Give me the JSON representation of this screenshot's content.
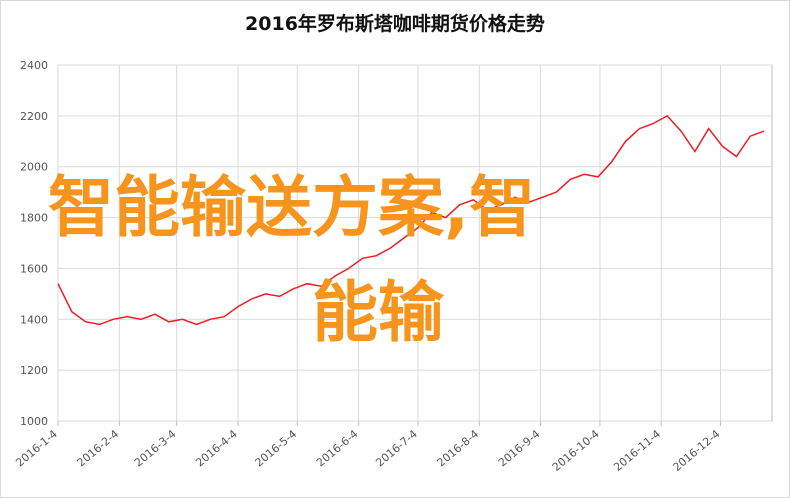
{
  "chart_data": {
    "type": "line",
    "title": "2016年罗布斯塔咖啡期货价格走势",
    "x": [
      "2016-1-4",
      "2016-1-11",
      "2016-1-18",
      "2016-1-25",
      "2016-2-1",
      "2016-2-8",
      "2016-2-15",
      "2016-2-22",
      "2016-2-29",
      "2016-3-7",
      "2016-3-14",
      "2016-3-21",
      "2016-3-28",
      "2016-4-4",
      "2016-4-11",
      "2016-4-18",
      "2016-4-25",
      "2016-5-2",
      "2016-5-9",
      "2016-5-16",
      "2016-5-23",
      "2016-5-30",
      "2016-6-6",
      "2016-6-13",
      "2016-6-20",
      "2016-6-27",
      "2016-7-4",
      "2016-7-11",
      "2016-7-18",
      "2016-7-25",
      "2016-8-1",
      "2016-8-8",
      "2016-8-15",
      "2016-8-22",
      "2016-8-29",
      "2016-9-5",
      "2016-9-12",
      "2016-9-19",
      "2016-9-26",
      "2016-10-3",
      "2016-10-10",
      "2016-10-17",
      "2016-10-24",
      "2016-10-31",
      "2016-11-7",
      "2016-11-14",
      "2016-11-21",
      "2016-11-28",
      "2016-12-5",
      "2016-12-12",
      "2016-12-19",
      "2016-12-26"
    ],
    "series": [
      {
        "color": "#ee1c25",
        "values": [
          1540,
          1430,
          1390,
          1380,
          1400,
          1410,
          1400,
          1420,
          1390,
          1400,
          1380,
          1400,
          1410,
          1450,
          1480,
          1500,
          1490,
          1520,
          1540,
          1530,
          1570,
          1600,
          1640,
          1650,
          1680,
          1720,
          1760,
          1820,
          1800,
          1850,
          1870,
          1830,
          1850,
          1880,
          1860,
          1880,
          1900,
          1950,
          1970,
          1960,
          2020,
          2100,
          2150,
          2170,
          2200,
          2140,
          2060,
          2150,
          2080,
          2040,
          2120,
          2140
        ]
      }
    ],
    "xlim": [
      "2016-1-4",
      "2016-12-30"
    ],
    "xticks": [
      "2016-1-4",
      "2016-2-4",
      "2016-3-4",
      "2016-4-4",
      "2016-5-4",
      "2016-6-4",
      "2016-7-4",
      "2016-8-4",
      "2016-9-4",
      "2016-10-4",
      "2016-11-4",
      "2016-12-4"
    ],
    "ylim": [
      1000,
      2400
    ],
    "yticks": [
      1000,
      1200,
      1400,
      1600,
      1800,
      2000,
      2200,
      2400
    ],
    "grid": true,
    "watermark": [
      "智能输送方案,智",
      "能输"
    ]
  }
}
